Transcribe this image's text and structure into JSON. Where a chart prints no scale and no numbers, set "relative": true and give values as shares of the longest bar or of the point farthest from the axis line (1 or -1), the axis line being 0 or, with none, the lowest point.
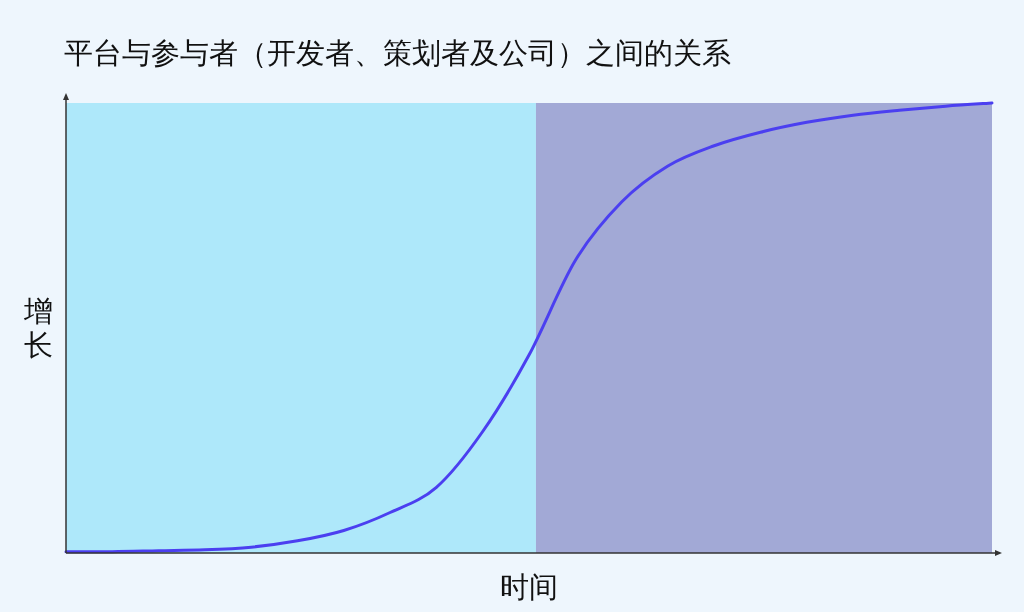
{
  "chart_data": {
    "type": "line",
    "title": "平台与参与者（开发者、策划者及公司）之间的关系",
    "xlabel": "时间",
    "ylabel": "增长",
    "relative": true,
    "categories": [
      null,
      null,
      null,
      null,
      null,
      null,
      null,
      null,
      null,
      null,
      null,
      null,
      null,
      null,
      null,
      null,
      null,
      null,
      null,
      null,
      null
    ],
    "series": [
      {
        "color": "#4b3ff0",
        "values": [
          0.003,
          0.003,
          0.005,
          0.007,
          0.013,
          0.027,
          0.05,
          0.09,
          0.146,
          0.27,
          0.44,
          0.65,
          0.78,
          0.86,
          0.905,
          0.935,
          0.957,
          0.973,
          0.984,
          0.993,
          1.0
        ]
      }
    ],
    "grid": false,
    "marker": "none",
    "line_style": "solid"
  }
}
